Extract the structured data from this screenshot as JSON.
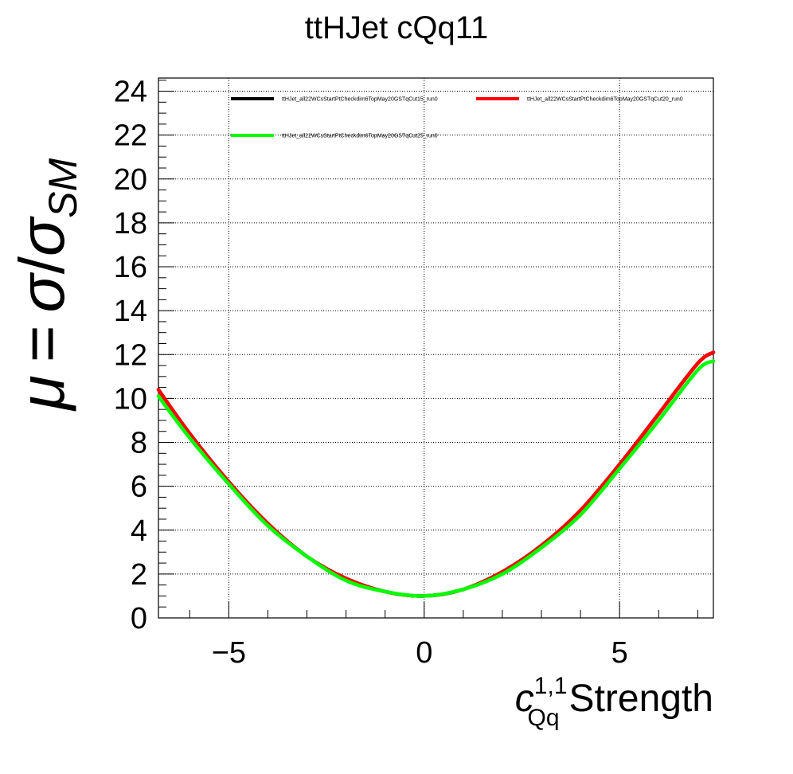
{
  "chart_data": {
    "type": "line",
    "title": "ttHJet cQq11",
    "xlabel": {
      "symbol": "c",
      "superscript": "1,1",
      "subscript": "Qq",
      "text": "Strength"
    },
    "ylabel": {
      "mu": "μ",
      "equals": "=",
      "sigma": "σ",
      "slash": "/",
      "subscript": "SM"
    },
    "xlim": [
      -6.8,
      7.4
    ],
    "ylim": [
      0,
      24.6
    ],
    "xticks": [
      -5,
      0,
      5
    ],
    "xtick_labels": [
      "−5",
      "0",
      "5"
    ],
    "yticks": [
      0,
      2,
      4,
      6,
      8,
      10,
      12,
      14,
      16,
      18,
      20,
      22,
      24
    ],
    "ytick_labels": [
      "0",
      "2",
      "4",
      "6",
      "8",
      "10",
      "12",
      "14",
      "16",
      "18",
      "20",
      "22",
      "24"
    ],
    "grid": true,
    "legend_position": "top",
    "x": [
      -6.8,
      -6,
      -5,
      -4,
      -3,
      -2,
      -1,
      0,
      1,
      2,
      3,
      4,
      5,
      6,
      7,
      7.4
    ],
    "series": [
      {
        "name": "ttHJet_all22WCsStartPtCheckdim6TopMay20GSTqCut15_run0",
        "color": "#000000",
        "values": [
          10.4,
          8.4,
          6.2,
          4.3,
          2.8,
          1.8,
          1.2,
          1.0,
          1.3,
          2.1,
          3.3,
          4.9,
          7.0,
          9.3,
          11.6,
          12.1
        ]
      },
      {
        "name": "ttHJet_all22WCsStartPtCheckdim6TopMay20GSTqCut20_run0",
        "color": "#ff0000",
        "values": [
          10.4,
          8.4,
          6.2,
          4.3,
          2.8,
          1.8,
          1.2,
          1.0,
          1.3,
          2.1,
          3.3,
          4.9,
          7.0,
          9.3,
          11.6,
          12.1
        ]
      },
      {
        "name": "ttHJet_all22WCsStartPtCheckdim6TopMay20GSTqCut25_run0",
        "color": "#00ff00",
        "values": [
          10.1,
          8.2,
          6.1,
          4.2,
          2.8,
          1.7,
          1.2,
          1.0,
          1.3,
          2.0,
          3.2,
          4.7,
          6.8,
          9.0,
          11.3,
          11.7
        ]
      }
    ]
  }
}
